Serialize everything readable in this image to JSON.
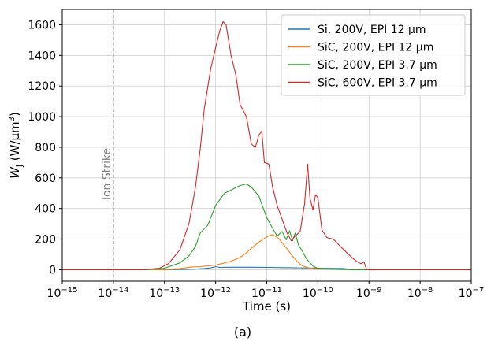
{
  "chart_data": {
    "type": "line",
    "xscale": "log",
    "xlim": [
      1e-15,
      1e-07
    ],
    "ylim": [
      -75,
      1700
    ],
    "xlabel": "Time (s)",
    "ylabel_parts": {
      "base": "W",
      "sub": "j",
      "unit_open": " (W/µm",
      "unit_sup": "3",
      "unit_close": ")"
    },
    "grid": true,
    "legend_position": "upper right",
    "caption": "(a)",
    "x_ticks": [
      {
        "v": 1e-15,
        "b": "10",
        "e": "−15"
      },
      {
        "v": 1e-14,
        "b": "10",
        "e": "−14"
      },
      {
        "v": 1e-13,
        "b": "10",
        "e": "−13"
      },
      {
        "v": 1e-12,
        "b": "10",
        "e": "−12"
      },
      {
        "v": 1e-11,
        "b": "10",
        "e": "−11"
      },
      {
        "v": 1e-10,
        "b": "10",
        "e": "−10"
      },
      {
        "v": 1e-09,
        "b": "10",
        "e": "−9"
      },
      {
        "v": 1e-08,
        "b": "10",
        "e": "−8"
      },
      {
        "v": 1e-07,
        "b": "10",
        "e": "−7"
      }
    ],
    "y_ticks": [
      0,
      200,
      400,
      600,
      800,
      1000,
      1200,
      1400,
      1600
    ],
    "annotation": {
      "text": "Ion Strike",
      "x": 1e-14,
      "color": "#808080"
    },
    "series": [
      {
        "name": "Si, 200V, EPI 12 µm",
        "color": "#1f77b4",
        "points": [
          [
            1e-15,
            0
          ],
          [
            1e-13,
            0
          ],
          [
            3e-13,
            2
          ],
          [
            6e-13,
            8
          ],
          [
            8e-13,
            12
          ],
          [
            1e-12,
            20
          ],
          [
            1.2e-12,
            15
          ],
          [
            2e-12,
            16
          ],
          [
            5e-12,
            16
          ],
          [
            1e-11,
            15
          ],
          [
            3e-11,
            13
          ],
          [
            1e-10,
            10
          ],
          [
            3e-10,
            8
          ],
          [
            6e-10,
            0
          ],
          [
            1e-07,
            0
          ]
        ]
      },
      {
        "name": "SiC, 200V, EPI 12 µm",
        "color": "#ff7f0e",
        "points": [
          [
            1e-15,
            0
          ],
          [
            1e-13,
            0
          ],
          [
            2e-13,
            8
          ],
          [
            3.5e-13,
            18
          ],
          [
            5e-13,
            20
          ],
          [
            7e-13,
            25
          ],
          [
            1e-12,
            30
          ],
          [
            2e-12,
            55
          ],
          [
            3e-12,
            80
          ],
          [
            4e-12,
            110
          ],
          [
            5e-12,
            140
          ],
          [
            7e-12,
            180
          ],
          [
            1e-11,
            215
          ],
          [
            1.3e-11,
            230
          ],
          [
            1.7e-11,
            205
          ],
          [
            2.2e-11,
            160
          ],
          [
            3e-11,
            100
          ],
          [
            4e-11,
            50
          ],
          [
            5e-11,
            25
          ],
          [
            7e-11,
            10
          ],
          [
            1e-10,
            4
          ],
          [
            3e-10,
            2
          ],
          [
            1e-09,
            0
          ],
          [
            1e-07,
            0
          ]
        ]
      },
      {
        "name": "SiC, 200V, EPI 3.7 µm",
        "color": "#2ca02c",
        "points": [
          [
            1e-15,
            0
          ],
          [
            5e-14,
            0
          ],
          [
            1e-13,
            10
          ],
          [
            2e-13,
            45
          ],
          [
            3e-13,
            90
          ],
          [
            4e-13,
            150
          ],
          [
            5e-13,
            240
          ],
          [
            7e-13,
            290
          ],
          [
            1e-12,
            420
          ],
          [
            1.5e-12,
            500
          ],
          [
            2e-12,
            520
          ],
          [
            3e-12,
            550
          ],
          [
            4e-12,
            560
          ],
          [
            5e-12,
            540
          ],
          [
            7e-12,
            480
          ],
          [
            1e-11,
            340
          ],
          [
            1.3e-11,
            270
          ],
          [
            1.6e-11,
            220
          ],
          [
            2e-11,
            250
          ],
          [
            2.4e-11,
            195
          ],
          [
            2.8e-11,
            255
          ],
          [
            3.2e-11,
            190
          ],
          [
            3.6e-11,
            240
          ],
          [
            4.2e-11,
            160
          ],
          [
            5e-11,
            120
          ],
          [
            6e-11,
            70
          ],
          [
            8e-11,
            25
          ],
          [
            1e-10,
            8
          ],
          [
            2e-10,
            3
          ],
          [
            5e-10,
            0
          ],
          [
            1e-07,
            0
          ]
        ]
      },
      {
        "name": "SiC, 600V, EPI 3.7 µm",
        "color": "#d62728",
        "points": [
          [
            1e-15,
            0
          ],
          [
            1e-14,
            0
          ],
          [
            4e-14,
            0
          ],
          [
            8e-14,
            10
          ],
          [
            1.2e-13,
            40
          ],
          [
            2e-13,
            130
          ],
          [
            3e-13,
            300
          ],
          [
            4e-13,
            530
          ],
          [
            5e-13,
            790
          ],
          [
            6e-13,
            1050
          ],
          [
            8e-13,
            1310
          ],
          [
            1e-12,
            1450
          ],
          [
            1.2e-12,
            1560
          ],
          [
            1.4e-12,
            1620
          ],
          [
            1.6e-12,
            1600
          ],
          [
            2e-12,
            1400
          ],
          [
            2.5e-12,
            1270
          ],
          [
            3e-12,
            1080
          ],
          [
            4e-12,
            1000
          ],
          [
            5e-12,
            820
          ],
          [
            6e-12,
            800
          ],
          [
            7e-12,
            880
          ],
          [
            8e-12,
            905
          ],
          [
            9e-12,
            700
          ],
          [
            1.1e-11,
            690
          ],
          [
            1.3e-11,
            540
          ],
          [
            1.6e-11,
            420
          ],
          [
            2e-11,
            330
          ],
          [
            2.5e-11,
            240
          ],
          [
            3e-11,
            190
          ],
          [
            3.5e-11,
            215
          ],
          [
            4.5e-11,
            250
          ],
          [
            5.5e-11,
            430
          ],
          [
            6.3e-11,
            690
          ],
          [
            7e-11,
            470
          ],
          [
            8e-11,
            390
          ],
          [
            9e-11,
            490
          ],
          [
            1e-10,
            470
          ],
          [
            1.2e-10,
            260
          ],
          [
            1.5e-10,
            210
          ],
          [
            2e-10,
            200
          ],
          [
            3e-10,
            140
          ],
          [
            4e-10,
            100
          ],
          [
            5e-10,
            70
          ],
          [
            6e-10,
            50
          ],
          [
            7e-10,
            40
          ],
          [
            8e-10,
            50
          ],
          [
            9e-10,
            0
          ],
          [
            1e-07,
            0
          ]
        ]
      }
    ]
  }
}
